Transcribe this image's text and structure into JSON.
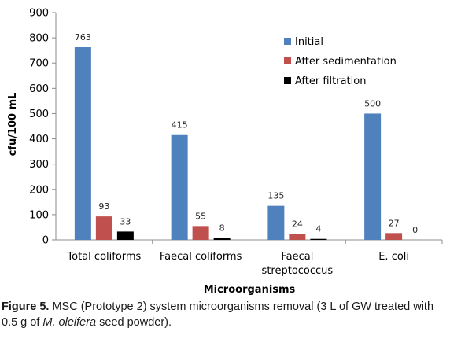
{
  "chart_data": {
    "type": "bar",
    "categories": [
      "Total coliforms",
      "Faecal coliforms",
      "Faecal streptococcus",
      "E. coli"
    ],
    "series": [
      {
        "name": "Initial",
        "values": [
          763,
          415,
          135,
          500
        ],
        "color": "#4f81bd"
      },
      {
        "name": "After sedimentation",
        "values": [
          93,
          55,
          24,
          27
        ],
        "color": "#c0504d"
      },
      {
        "name": "After filtration",
        "values": [
          33,
          8,
          4,
          0
        ],
        "color": "#000000"
      }
    ],
    "data_labels": [
      [
        "763",
        "93",
        "33"
      ],
      [
        "415",
        "55",
        "8"
      ],
      [
        "135",
        "24",
        "4"
      ],
      [
        "500",
        "27",
        "0"
      ]
    ],
    "xlabel": "Microorganisms",
    "ylabel": "cfu/100 mL",
    "ylim": [
      0,
      900
    ],
    "yticks": [
      0,
      100,
      200,
      300,
      400,
      500,
      600,
      700,
      800,
      900
    ],
    "legend_position": "top-right",
    "grid": false
  },
  "caption": {
    "label": "Figure 5.",
    "text_pre": "MSC (Prototype 2) system microorganisms removal (3 L of GW treated with 0.5 g of ",
    "species": "M. oleifera",
    "text_post": " seed powder)."
  }
}
